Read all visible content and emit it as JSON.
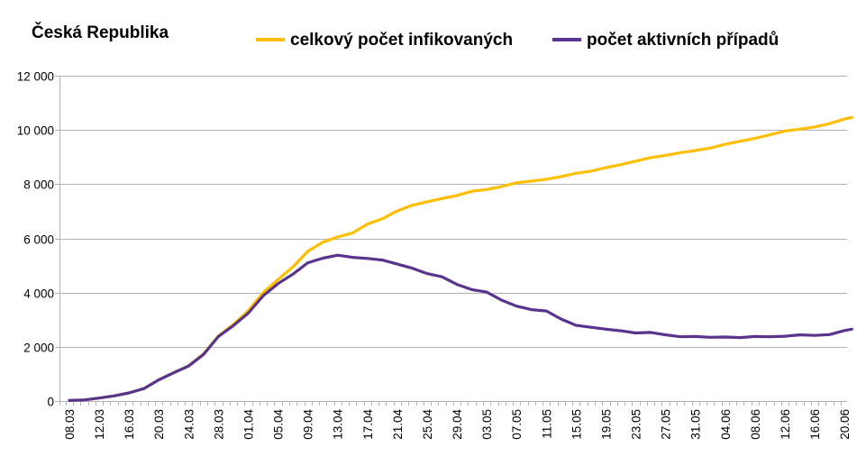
{
  "chart_data": {
    "type": "line",
    "title": "Česká Republika",
    "legend_position": "top",
    "grid": true,
    "ylim": [
      0,
      12000
    ],
    "yticks": [
      0,
      2000,
      4000,
      6000,
      8000,
      10000,
      12000
    ],
    "ytick_labels": [
      "0",
      "2 000",
      "4 000",
      "6 000",
      "8 000",
      "10 000",
      "12 000"
    ],
    "xtick_labels": [
      "08.03",
      "12.03",
      "16.03",
      "20.03",
      "24.03",
      "28.03",
      "01.04",
      "05.04",
      "09.04",
      "13.04",
      "17.04",
      "21.04",
      "25.04",
      "29.04",
      "03.05",
      "07.05",
      "11.05",
      "15.05",
      "19.05",
      "23.05",
      "27.05",
      "31.05",
      "04.06",
      "08.06",
      "12.06",
      "16.06",
      "20.06"
    ],
    "x_start": "08.03",
    "x_end": "21.06",
    "series": [
      {
        "name": "celkový počet infikovaných",
        "color": "#ffbf00",
        "points": [
          [
            "08.03",
            20
          ],
          [
            "10.03",
            40
          ],
          [
            "12.03",
            110
          ],
          [
            "14.03",
            190
          ],
          [
            "16.03",
            300
          ],
          [
            "18.03",
            460
          ],
          [
            "20.03",
            780
          ],
          [
            "22.03",
            1050
          ],
          [
            "24.03",
            1300
          ],
          [
            "26.03",
            1740
          ],
          [
            "28.03",
            2400
          ],
          [
            "30.03",
            2820
          ],
          [
            "01.04",
            3330
          ],
          [
            "03.04",
            4000
          ],
          [
            "05.04",
            4480
          ],
          [
            "07.04",
            4950
          ],
          [
            "09.04",
            5520
          ],
          [
            "11.04",
            5860
          ],
          [
            "13.04",
            6050
          ],
          [
            "15.04",
            6200
          ],
          [
            "17.04",
            6530
          ],
          [
            "19.04",
            6720
          ],
          [
            "21.04",
            7010
          ],
          [
            "23.04",
            7220
          ],
          [
            "25.04",
            7350
          ],
          [
            "27.04",
            7470
          ],
          [
            "29.04",
            7580
          ],
          [
            "01.05",
            7740
          ],
          [
            "03.05",
            7800
          ],
          [
            "05.05",
            7910
          ],
          [
            "07.05",
            8050
          ],
          [
            "09.05",
            8110
          ],
          [
            "11.05",
            8180
          ],
          [
            "13.05",
            8280
          ],
          [
            "15.05",
            8400
          ],
          [
            "17.05",
            8480
          ],
          [
            "19.05",
            8610
          ],
          [
            "21.05",
            8720
          ],
          [
            "23.05",
            8850
          ],
          [
            "25.05",
            8980
          ],
          [
            "27.05",
            9060
          ],
          [
            "29.05",
            9160
          ],
          [
            "31.05",
            9240
          ],
          [
            "02.06",
            9330
          ],
          [
            "04.06",
            9470
          ],
          [
            "06.06",
            9580
          ],
          [
            "08.06",
            9690
          ],
          [
            "10.06",
            9820
          ],
          [
            "12.06",
            9960
          ],
          [
            "14.06",
            10030
          ],
          [
            "16.06",
            10110
          ],
          [
            "18.06",
            10230
          ],
          [
            "20.06",
            10400
          ],
          [
            "21.06",
            10460
          ]
        ]
      },
      {
        "name": "počet aktivních případů",
        "color": "#59348e",
        "points": [
          [
            "08.03",
            20
          ],
          [
            "10.03",
            40
          ],
          [
            "12.03",
            110
          ],
          [
            "14.03",
            190
          ],
          [
            "16.03",
            300
          ],
          [
            "18.03",
            460
          ],
          [
            "20.03",
            780
          ],
          [
            "22.03",
            1040
          ],
          [
            "24.03",
            1290
          ],
          [
            "26.03",
            1720
          ],
          [
            "28.03",
            2380
          ],
          [
            "30.03",
            2780
          ],
          [
            "01.04",
            3240
          ],
          [
            "03.04",
            3880
          ],
          [
            "05.04",
            4330
          ],
          [
            "07.04",
            4680
          ],
          [
            "09.04",
            5100
          ],
          [
            "11.04",
            5270
          ],
          [
            "13.04",
            5380
          ],
          [
            "15.04",
            5300
          ],
          [
            "17.04",
            5260
          ],
          [
            "19.04",
            5200
          ],
          [
            "21.04",
            5050
          ],
          [
            "23.04",
            4900
          ],
          [
            "25.04",
            4700
          ],
          [
            "27.04",
            4580
          ],
          [
            "29.04",
            4300
          ],
          [
            "01.05",
            4110
          ],
          [
            "03.05",
            4020
          ],
          [
            "05.05",
            3720
          ],
          [
            "07.05",
            3500
          ],
          [
            "09.05",
            3370
          ],
          [
            "11.05",
            3320
          ],
          [
            "13.05",
            3020
          ],
          [
            "15.05",
            2790
          ],
          [
            "17.05",
            2720
          ],
          [
            "19.05",
            2650
          ],
          [
            "21.05",
            2590
          ],
          [
            "23.05",
            2510
          ],
          [
            "25.05",
            2530
          ],
          [
            "27.05",
            2440
          ],
          [
            "29.05",
            2370
          ],
          [
            "31.05",
            2380
          ],
          [
            "02.06",
            2350
          ],
          [
            "04.06",
            2360
          ],
          [
            "06.06",
            2340
          ],
          [
            "08.06",
            2380
          ],
          [
            "10.06",
            2370
          ],
          [
            "12.06",
            2390
          ],
          [
            "14.06",
            2440
          ],
          [
            "16.06",
            2420
          ],
          [
            "18.06",
            2450
          ],
          [
            "20.06",
            2600
          ],
          [
            "21.06",
            2650
          ]
        ]
      }
    ]
  }
}
